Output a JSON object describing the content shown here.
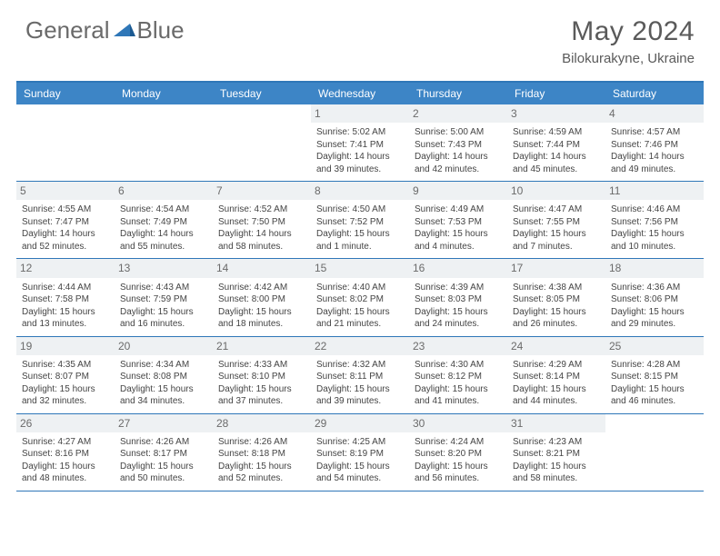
{
  "brand": {
    "part1": "General",
    "part2": "Blue"
  },
  "title": "May 2024",
  "location": "Bilokurakyne, Ukraine",
  "colors": {
    "header_bg": "#3d85c6",
    "border": "#2f77b8",
    "daynum_bg": "#eef1f3",
    "text": "#444444",
    "title_text": "#5a5a5a"
  },
  "weekdays": [
    "Sunday",
    "Monday",
    "Tuesday",
    "Wednesday",
    "Thursday",
    "Friday",
    "Saturday"
  ],
  "weeks": [
    [
      {
        "n": "",
        "sr": "",
        "ss": "",
        "dl": ""
      },
      {
        "n": "",
        "sr": "",
        "ss": "",
        "dl": ""
      },
      {
        "n": "",
        "sr": "",
        "ss": "",
        "dl": ""
      },
      {
        "n": "1",
        "sr": "Sunrise: 5:02 AM",
        "ss": "Sunset: 7:41 PM",
        "dl": "Daylight: 14 hours and 39 minutes."
      },
      {
        "n": "2",
        "sr": "Sunrise: 5:00 AM",
        "ss": "Sunset: 7:43 PM",
        "dl": "Daylight: 14 hours and 42 minutes."
      },
      {
        "n": "3",
        "sr": "Sunrise: 4:59 AM",
        "ss": "Sunset: 7:44 PM",
        "dl": "Daylight: 14 hours and 45 minutes."
      },
      {
        "n": "4",
        "sr": "Sunrise: 4:57 AM",
        "ss": "Sunset: 7:46 PM",
        "dl": "Daylight: 14 hours and 49 minutes."
      }
    ],
    [
      {
        "n": "5",
        "sr": "Sunrise: 4:55 AM",
        "ss": "Sunset: 7:47 PM",
        "dl": "Daylight: 14 hours and 52 minutes."
      },
      {
        "n": "6",
        "sr": "Sunrise: 4:54 AM",
        "ss": "Sunset: 7:49 PM",
        "dl": "Daylight: 14 hours and 55 minutes."
      },
      {
        "n": "7",
        "sr": "Sunrise: 4:52 AM",
        "ss": "Sunset: 7:50 PM",
        "dl": "Daylight: 14 hours and 58 minutes."
      },
      {
        "n": "8",
        "sr": "Sunrise: 4:50 AM",
        "ss": "Sunset: 7:52 PM",
        "dl": "Daylight: 15 hours and 1 minute."
      },
      {
        "n": "9",
        "sr": "Sunrise: 4:49 AM",
        "ss": "Sunset: 7:53 PM",
        "dl": "Daylight: 15 hours and 4 minutes."
      },
      {
        "n": "10",
        "sr": "Sunrise: 4:47 AM",
        "ss": "Sunset: 7:55 PM",
        "dl": "Daylight: 15 hours and 7 minutes."
      },
      {
        "n": "11",
        "sr": "Sunrise: 4:46 AM",
        "ss": "Sunset: 7:56 PM",
        "dl": "Daylight: 15 hours and 10 minutes."
      }
    ],
    [
      {
        "n": "12",
        "sr": "Sunrise: 4:44 AM",
        "ss": "Sunset: 7:58 PM",
        "dl": "Daylight: 15 hours and 13 minutes."
      },
      {
        "n": "13",
        "sr": "Sunrise: 4:43 AM",
        "ss": "Sunset: 7:59 PM",
        "dl": "Daylight: 15 hours and 16 minutes."
      },
      {
        "n": "14",
        "sr": "Sunrise: 4:42 AM",
        "ss": "Sunset: 8:00 PM",
        "dl": "Daylight: 15 hours and 18 minutes."
      },
      {
        "n": "15",
        "sr": "Sunrise: 4:40 AM",
        "ss": "Sunset: 8:02 PM",
        "dl": "Daylight: 15 hours and 21 minutes."
      },
      {
        "n": "16",
        "sr": "Sunrise: 4:39 AM",
        "ss": "Sunset: 8:03 PM",
        "dl": "Daylight: 15 hours and 24 minutes."
      },
      {
        "n": "17",
        "sr": "Sunrise: 4:38 AM",
        "ss": "Sunset: 8:05 PM",
        "dl": "Daylight: 15 hours and 26 minutes."
      },
      {
        "n": "18",
        "sr": "Sunrise: 4:36 AM",
        "ss": "Sunset: 8:06 PM",
        "dl": "Daylight: 15 hours and 29 minutes."
      }
    ],
    [
      {
        "n": "19",
        "sr": "Sunrise: 4:35 AM",
        "ss": "Sunset: 8:07 PM",
        "dl": "Daylight: 15 hours and 32 minutes."
      },
      {
        "n": "20",
        "sr": "Sunrise: 4:34 AM",
        "ss": "Sunset: 8:08 PM",
        "dl": "Daylight: 15 hours and 34 minutes."
      },
      {
        "n": "21",
        "sr": "Sunrise: 4:33 AM",
        "ss": "Sunset: 8:10 PM",
        "dl": "Daylight: 15 hours and 37 minutes."
      },
      {
        "n": "22",
        "sr": "Sunrise: 4:32 AM",
        "ss": "Sunset: 8:11 PM",
        "dl": "Daylight: 15 hours and 39 minutes."
      },
      {
        "n": "23",
        "sr": "Sunrise: 4:30 AM",
        "ss": "Sunset: 8:12 PM",
        "dl": "Daylight: 15 hours and 41 minutes."
      },
      {
        "n": "24",
        "sr": "Sunrise: 4:29 AM",
        "ss": "Sunset: 8:14 PM",
        "dl": "Daylight: 15 hours and 44 minutes."
      },
      {
        "n": "25",
        "sr": "Sunrise: 4:28 AM",
        "ss": "Sunset: 8:15 PM",
        "dl": "Daylight: 15 hours and 46 minutes."
      }
    ],
    [
      {
        "n": "26",
        "sr": "Sunrise: 4:27 AM",
        "ss": "Sunset: 8:16 PM",
        "dl": "Daylight: 15 hours and 48 minutes."
      },
      {
        "n": "27",
        "sr": "Sunrise: 4:26 AM",
        "ss": "Sunset: 8:17 PM",
        "dl": "Daylight: 15 hours and 50 minutes."
      },
      {
        "n": "28",
        "sr": "Sunrise: 4:26 AM",
        "ss": "Sunset: 8:18 PM",
        "dl": "Daylight: 15 hours and 52 minutes."
      },
      {
        "n": "29",
        "sr": "Sunrise: 4:25 AM",
        "ss": "Sunset: 8:19 PM",
        "dl": "Daylight: 15 hours and 54 minutes."
      },
      {
        "n": "30",
        "sr": "Sunrise: 4:24 AM",
        "ss": "Sunset: 8:20 PM",
        "dl": "Daylight: 15 hours and 56 minutes."
      },
      {
        "n": "31",
        "sr": "Sunrise: 4:23 AM",
        "ss": "Sunset: 8:21 PM",
        "dl": "Daylight: 15 hours and 58 minutes."
      },
      {
        "n": "",
        "sr": "",
        "ss": "",
        "dl": ""
      }
    ]
  ]
}
